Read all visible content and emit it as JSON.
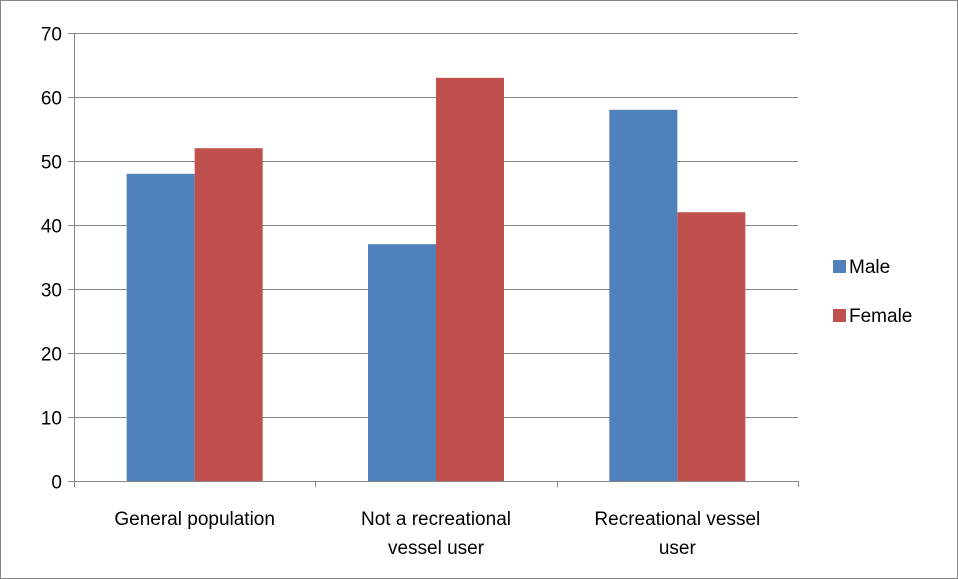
{
  "chart_data": {
    "type": "bar",
    "categories": [
      [
        "General population"
      ],
      [
        "Not a recreational",
        "vessel user"
      ],
      [
        "Recreational vessel",
        "user"
      ]
    ],
    "series": [
      {
        "name": "Male",
        "color": "#4f81bd",
        "values": [
          48,
          37,
          58
        ]
      },
      {
        "name": "Female",
        "color": "#c0504d",
        "values": [
          52,
          63,
          42
        ]
      }
    ],
    "ylim": [
      0,
      70
    ],
    "yticks": [
      0,
      10,
      20,
      30,
      40,
      50,
      60,
      70
    ],
    "grid": true,
    "legend_position": "right"
  }
}
